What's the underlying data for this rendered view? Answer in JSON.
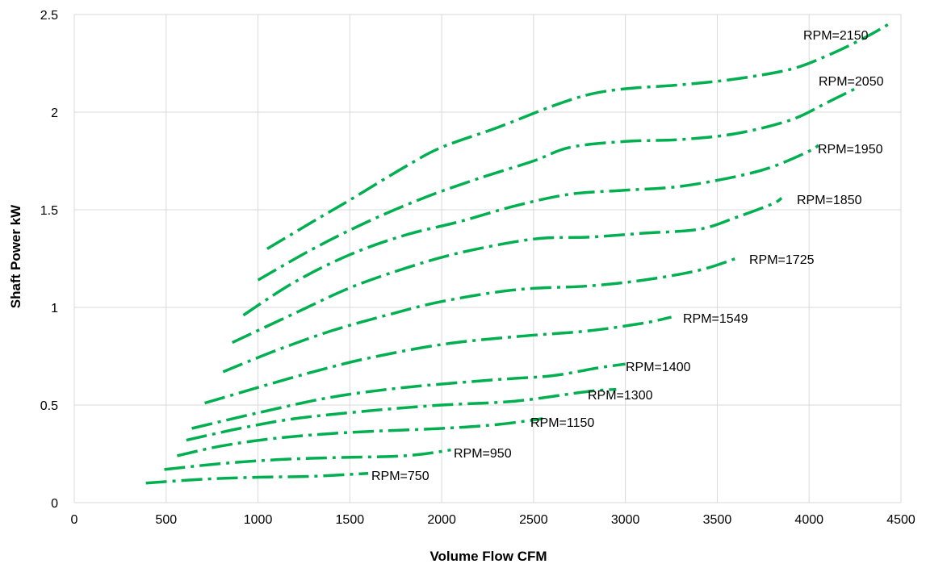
{
  "chart_data": {
    "type": "line",
    "xlabel": "Volume Flow CFM",
    "ylabel": "Shaft Power kW",
    "xlim": [
      0,
      4500
    ],
    "ylim": [
      0,
      2.5
    ],
    "x_ticks": [
      0,
      500,
      1000,
      1500,
      2000,
      2500,
      3000,
      3500,
      4000,
      4500
    ],
    "y_ticks": [
      0,
      0.5,
      1,
      1.5,
      2,
      2.5
    ],
    "x_tick_labels": [
      "0",
      "500",
      "1000",
      "1500",
      "2000",
      "2500",
      "3000",
      "3500",
      "4000",
      "4500"
    ],
    "y_tick_labels": [
      "0",
      "0.5",
      "1",
      "1.5",
      "2",
      "2.5"
    ],
    "grid": "vertical and horizontal",
    "line_color": "#00b050",
    "series": [
      {
        "name": "RPM=750",
        "points": [
          [
            390,
            0.1
          ],
          [
            700,
            0.12
          ],
          [
            1000,
            0.13
          ],
          [
            1300,
            0.135
          ],
          [
            1600,
            0.15
          ]
        ]
      },
      {
        "name": "RPM=950",
        "points": [
          [
            490,
            0.17
          ],
          [
            800,
            0.2
          ],
          [
            1100,
            0.22
          ],
          [
            1400,
            0.23
          ],
          [
            1800,
            0.24
          ],
          [
            2050,
            0.27
          ]
        ]
      },
      {
        "name": "RPM=1150",
        "points": [
          [
            560,
            0.24
          ],
          [
            800,
            0.29
          ],
          [
            1100,
            0.33
          ],
          [
            1500,
            0.36
          ],
          [
            2000,
            0.38
          ],
          [
            2300,
            0.4
          ],
          [
            2550,
            0.43
          ]
        ]
      },
      {
        "name": "RPM=1300",
        "points": [
          [
            610,
            0.32
          ],
          [
            900,
            0.38
          ],
          [
            1200,
            0.43
          ],
          [
            1600,
            0.47
          ],
          [
            2000,
            0.5
          ],
          [
            2400,
            0.52
          ],
          [
            2800,
            0.57
          ],
          [
            2950,
            0.58
          ]
        ]
      },
      {
        "name": "RPM=1400",
        "points": [
          [
            640,
            0.38
          ],
          [
            1000,
            0.46
          ],
          [
            1400,
            0.54
          ],
          [
            1800,
            0.59
          ],
          [
            2300,
            0.63
          ],
          [
            2600,
            0.65
          ],
          [
            2850,
            0.69
          ],
          [
            3000,
            0.71
          ]
        ]
      },
      {
        "name": "RPM=1549",
        "points": [
          [
            710,
            0.51
          ],
          [
            1000,
            0.59
          ],
          [
            1300,
            0.67
          ],
          [
            1600,
            0.74
          ],
          [
            2000,
            0.81
          ],
          [
            2400,
            0.85
          ],
          [
            2800,
            0.88
          ],
          [
            3100,
            0.92
          ],
          [
            3250,
            0.95
          ]
        ]
      },
      {
        "name": "RPM=1725",
        "points": [
          [
            810,
            0.67
          ],
          [
            1100,
            0.78
          ],
          [
            1400,
            0.88
          ],
          [
            1700,
            0.96
          ],
          [
            2000,
            1.03
          ],
          [
            2400,
            1.09
          ],
          [
            2800,
            1.11
          ],
          [
            3100,
            1.14
          ],
          [
            3400,
            1.19
          ],
          [
            3600,
            1.25
          ]
        ]
      },
      {
        "name": "RPM=1850",
        "points": [
          [
            860,
            0.82
          ],
          [
            1200,
            0.97
          ],
          [
            1500,
            1.1
          ],
          [
            1800,
            1.2
          ],
          [
            2100,
            1.28
          ],
          [
            2500,
            1.35
          ],
          [
            2800,
            1.36
          ],
          [
            3100,
            1.38
          ],
          [
            3400,
            1.4
          ],
          [
            3600,
            1.46
          ],
          [
            3800,
            1.53
          ],
          [
            3850,
            1.56
          ]
        ]
      },
      {
        "name": "RPM=1950",
        "points": [
          [
            920,
            0.96
          ],
          [
            1200,
            1.13
          ],
          [
            1500,
            1.27
          ],
          [
            1800,
            1.37
          ],
          [
            2100,
            1.44
          ],
          [
            2400,
            1.52
          ],
          [
            2700,
            1.58
          ],
          [
            3000,
            1.6
          ],
          [
            3300,
            1.62
          ],
          [
            3600,
            1.67
          ],
          [
            3800,
            1.72
          ],
          [
            4000,
            1.8
          ],
          [
            4050,
            1.83
          ]
        ]
      },
      {
        "name": "RPM=2050",
        "points": [
          [
            1000,
            1.14
          ],
          [
            1300,
            1.3
          ],
          [
            1600,
            1.44
          ],
          [
            1900,
            1.56
          ],
          [
            2200,
            1.66
          ],
          [
            2500,
            1.75
          ],
          [
            2700,
            1.82
          ],
          [
            3000,
            1.85
          ],
          [
            3300,
            1.86
          ],
          [
            3600,
            1.89
          ],
          [
            3900,
            1.96
          ],
          [
            4100,
            2.05
          ],
          [
            4250,
            2.12
          ]
        ]
      },
      {
        "name": "RPM=2150",
        "points": [
          [
            1050,
            1.3
          ],
          [
            1300,
            1.44
          ],
          [
            1500,
            1.55
          ],
          [
            1800,
            1.72
          ],
          [
            2000,
            1.82
          ],
          [
            2300,
            1.92
          ],
          [
            2600,
            2.03
          ],
          [
            2800,
            2.09
          ],
          [
            3000,
            2.12
          ],
          [
            3300,
            2.14
          ],
          [
            3600,
            2.17
          ],
          [
            3900,
            2.22
          ],
          [
            4100,
            2.29
          ],
          [
            4300,
            2.38
          ],
          [
            4450,
            2.46
          ]
        ]
      }
    ]
  }
}
